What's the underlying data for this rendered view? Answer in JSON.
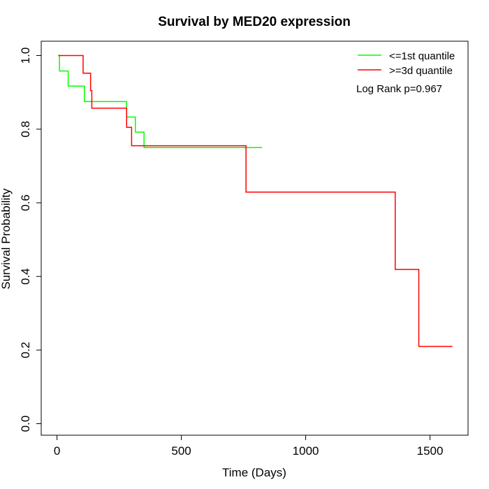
{
  "chart_data": {
    "type": "line",
    "subtype": "kaplan-meier step",
    "title": "Survival by MED20 expression",
    "xlabel": "Time (Days)",
    "ylabel": "Survival Probability",
    "xlim": [
      0,
      1650
    ],
    "ylim": [
      0,
      1
    ],
    "xticks": [
      0,
      500,
      1000,
      1500
    ],
    "yticks": [
      0.0,
      0.2,
      0.4,
      0.6,
      0.8,
      1.0
    ],
    "xtick_labels": [
      "0",
      "500",
      "1000",
      "1500"
    ],
    "ytick_labels": [
      "0.0",
      "0.2",
      "0.4",
      "0.6",
      "0.8",
      "1.0"
    ],
    "grid": false,
    "legend_position": "top-right",
    "annotation": "Log Rank p=0.967",
    "series": [
      {
        "name": "<=1st quantile",
        "color": "#00ff00",
        "x": [
          5,
          10,
          45,
          110,
          280,
          315,
          350,
          825
        ],
        "y": [
          1.0,
          0.958,
          0.917,
          0.875,
          0.833,
          0.792,
          0.75,
          0.75
        ]
      },
      {
        "name": ">=3d quantile",
        "color": "#ff0000",
        "x": [
          5,
          105,
          135,
          140,
          280,
          300,
          760,
          1360,
          1455,
          1590
        ],
        "y": [
          1.0,
          0.952,
          0.905,
          0.857,
          0.805,
          0.755,
          0.629,
          0.419,
          0.21,
          0.21
        ]
      }
    ]
  }
}
